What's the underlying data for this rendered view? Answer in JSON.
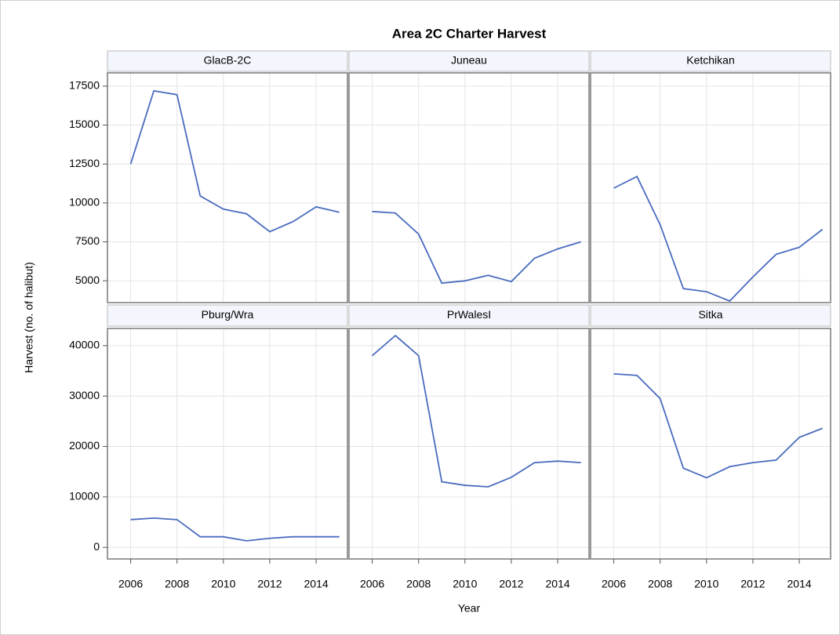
{
  "chart_data": {
    "type": "line",
    "title": "Area 2C Charter Harvest",
    "x_label": "Year",
    "y_label": "Harvest (no. of halibut)",
    "color": "#4a6cbf",
    "grid": true,
    "x": [
      2006,
      2007,
      2008,
      2009,
      2010,
      2011,
      2012,
      2013,
      2014,
      2015
    ],
    "xlim": [
      2005,
      2015.35
    ],
    "xticks": [
      2006,
      2008,
      2010,
      2012,
      2014
    ],
    "rows": [
      {
        "ylim": [
          3600,
          18350
        ],
        "yticks": [
          5000,
          7500,
          10000,
          12500,
          15000,
          17500
        ],
        "panels": [
          {
            "name": "GlacB-2C",
            "values": [
              12500,
              17200,
              16950,
              10450,
              9600,
              9300,
              8150,
              8800,
              9750,
              9400
            ]
          },
          {
            "name": "Juneau",
            "values": [
              9450,
              9350,
              8000,
              4850,
              5000,
              5350,
              4950,
              6450,
              7050,
              7500
            ]
          },
          {
            "name": "Ketchikan",
            "values": [
              10950,
              11700,
              8600,
              4500,
              4300,
              3700,
              5250,
              6700,
              7150,
              8300
            ]
          }
        ]
      },
      {
        "ylim": [
          -2300,
          43400
        ],
        "yticks": [
          0,
          10000,
          20000,
          30000,
          40000
        ],
        "panels": [
          {
            "name": "Pburg/Wra",
            "values": [
              5500,
              5800,
              5500,
              2100,
              2100,
              1300,
              1800,
              2100,
              2100,
              2100
            ]
          },
          {
            "name": "PrWalesI",
            "values": [
              38000,
              42000,
              38000,
              13000,
              12300,
              12000,
              13900,
              16800,
              17100,
              16800
            ]
          },
          {
            "name": "Sitka",
            "values": [
              34400,
              34100,
              29500,
              15700,
              13800,
              16000,
              16800,
              17300,
              21800,
              23600
            ]
          }
        ]
      }
    ]
  }
}
